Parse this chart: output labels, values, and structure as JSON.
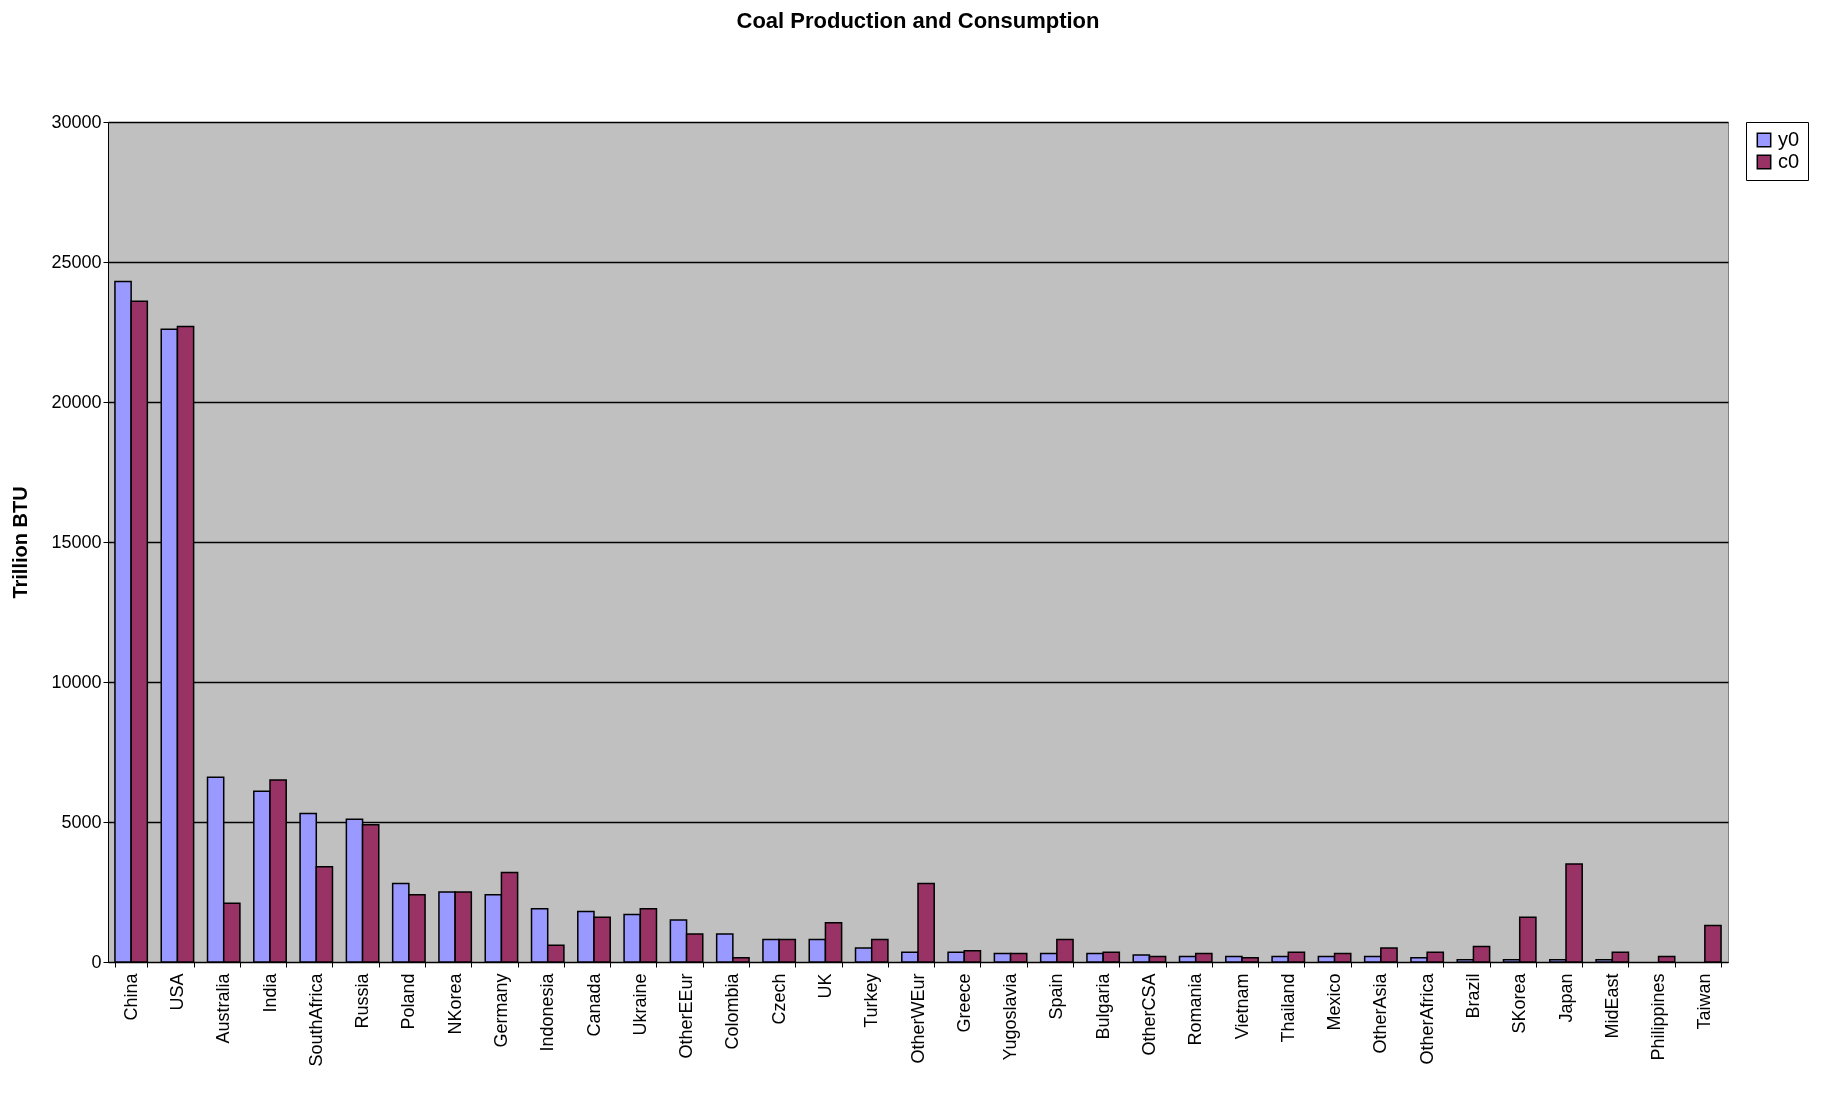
{
  "chart_data": {
    "type": "bar",
    "title": "Coal Production and Consumption",
    "ylabel": "Trillion BTU",
    "categories": [
      "China",
      "USA",
      "Australia",
      "India",
      "SouthAfrica",
      "Russia",
      "Poland",
      "NKorea",
      "Germany",
      "Indonesia",
      "Canada",
      "Ukraine",
      "OtherEEur",
      "Colombia",
      "Czech",
      "UK",
      "Turkey",
      "OtherWEur",
      "Greece",
      "Yugoslavia",
      "Spain",
      "Bulgaria",
      "OtherCSA",
      "Romania",
      "Vietnam",
      "Thailand",
      "Mexico",
      "OtherAsia",
      "OtherAfrica",
      "Brazil",
      "SKorea",
      "Japan",
      "MidEast",
      "Philippines",
      "Taiwan"
    ],
    "series": [
      {
        "name": "y0",
        "color": "#9999ff",
        "values": [
          24300,
          22600,
          6600,
          6100,
          5300,
          5100,
          2800,
          2500,
          2400,
          1900,
          1800,
          1700,
          1500,
          1000,
          800,
          800,
          500,
          350,
          350,
          300,
          300,
          300,
          250,
          200,
          200,
          200,
          200,
          200,
          150,
          80,
          80,
          80,
          80,
          0,
          0
        ]
      },
      {
        "name": "c0",
        "color": "#993366",
        "values": [
          23600,
          22700,
          2100,
          6500,
          3400,
          4900,
          2400,
          2500,
          3200,
          600,
          1600,
          1900,
          1000,
          150,
          800,
          1400,
          800,
          2800,
          400,
          300,
          800,
          350,
          200,
          300,
          150,
          350,
          300,
          500,
          350,
          550,
          1600,
          3500,
          350,
          200,
          1300
        ]
      }
    ],
    "ylim": [
      0,
      30000
    ],
    "yticks": [
      0,
      5000,
      10000,
      15000,
      20000,
      25000,
      30000
    ],
    "grid": "y",
    "legend": "right"
  }
}
